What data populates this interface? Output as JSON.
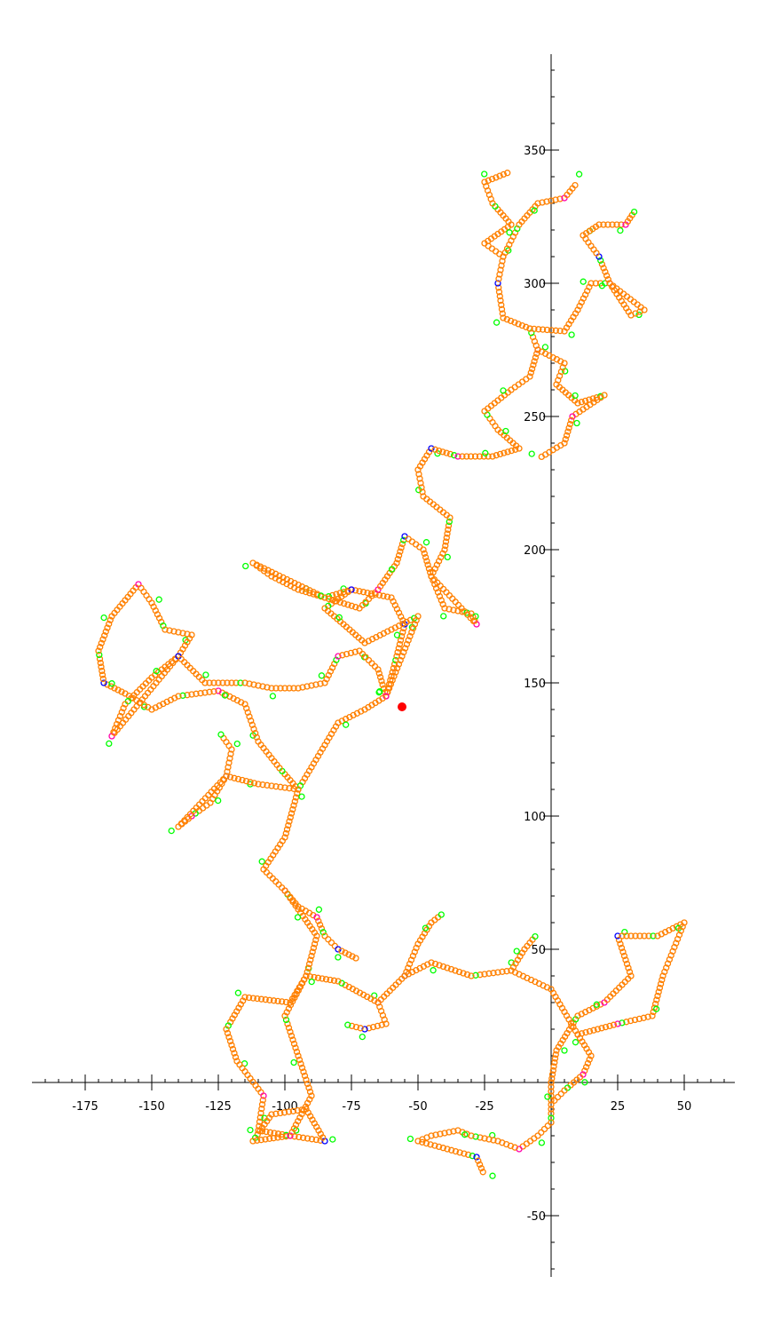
{
  "chart_data": {
    "type": "scatter",
    "title": "",
    "xlabel": "",
    "ylabel": "",
    "grid": false,
    "xlim": [
      -195,
      69
    ],
    "ylim": [
      -73,
      386
    ],
    "x_ticks": [
      -175,
      -150,
      -125,
      -100,
      -75,
      -50,
      -25,
      25,
      50
    ],
    "x_tick_labels": [
      "-175",
      "-150",
      "-125",
      "-100",
      "-75",
      "-50",
      "-25",
      "25",
      "50"
    ],
    "y_ticks": [
      -50,
      50,
      100,
      150,
      200,
      250,
      300,
      350
    ],
    "y_tick_labels": [
      "-50",
      "50",
      "100",
      "150",
      "200",
      "250",
      "300",
      "350"
    ],
    "marker": "open-circle",
    "highlight": {
      "x": -56,
      "y": 141,
      "color": "#ff0000",
      "marker": "filled-circle"
    },
    "series_colors": {
      "chain": "#ff8000",
      "end": "#00ff00",
      "branch": "#ff00aa",
      "junction": "#0000ff"
    },
    "path": [
      [
        0,
        0
      ],
      [
        2,
        12
      ],
      [
        10,
        25
      ],
      [
        20,
        30
      ],
      [
        30,
        40
      ],
      [
        25,
        55
      ],
      [
        40,
        55
      ],
      [
        50,
        60
      ],
      [
        42,
        40
      ],
      [
        38,
        25
      ],
      [
        25,
        22
      ],
      [
        10,
        18
      ],
      [
        0,
        35
      ],
      [
        -15,
        42
      ],
      [
        -30,
        40
      ],
      [
        -45,
        45
      ],
      [
        -55,
        40
      ],
      [
        -65,
        30
      ],
      [
        -80,
        38
      ],
      [
        -92,
        40
      ],
      [
        -98,
        30
      ],
      [
        -115,
        32
      ],
      [
        -122,
        20
      ],
      [
        -118,
        8
      ],
      [
        -108,
        -5
      ],
      [
        -110,
        -18
      ],
      [
        -98,
        -20
      ],
      [
        -85,
        -22
      ],
      [
        -92,
        -10
      ],
      [
        -105,
        -12
      ],
      [
        -112,
        -22
      ],
      [
        -98,
        -20
      ],
      [
        -90,
        -5
      ],
      [
        -95,
        10
      ],
      [
        -100,
        25
      ],
      [
        -92,
        40
      ],
      [
        -88,
        55
      ],
      [
        -95,
        65
      ],
      [
        -100,
        72
      ],
      [
        -108,
        80
      ],
      [
        -100,
        92
      ],
      [
        -95,
        110
      ],
      [
        -102,
        118
      ],
      [
        -110,
        128
      ],
      [
        -115,
        142
      ],
      [
        -125,
        147
      ],
      [
        -140,
        145
      ],
      [
        -150,
        140
      ],
      [
        -160,
        146
      ],
      [
        -168,
        150
      ],
      [
        -170,
        162
      ],
      [
        -165,
        175
      ],
      [
        -155,
        187
      ],
      [
        -150,
        180
      ],
      [
        -145,
        170
      ],
      [
        -135,
        168
      ],
      [
        -140,
        160
      ],
      [
        -150,
        152
      ],
      [
        -160,
        142
      ],
      [
        -165,
        130
      ],
      [
        -140,
        160
      ],
      [
        -130,
        150
      ],
      [
        -115,
        150
      ],
      [
        -105,
        148
      ],
      [
        -95,
        148
      ],
      [
        -85,
        150
      ],
      [
        -80,
        160
      ],
      [
        -72,
        162
      ],
      [
        -65,
        155
      ],
      [
        -62,
        145
      ],
      [
        -58,
        160
      ],
      [
        -55,
        172
      ],
      [
        -60,
        182
      ],
      [
        -75,
        185
      ],
      [
        -85,
        182
      ],
      [
        -95,
        185
      ],
      [
        -105,
        190
      ],
      [
        -112,
        195
      ],
      [
        -85,
        182
      ],
      [
        -72,
        178
      ],
      [
        -65,
        185
      ],
      [
        -58,
        195
      ],
      [
        -55,
        205
      ],
      [
        -48,
        200
      ],
      [
        -45,
        190
      ],
      [
        -40,
        178
      ],
      [
        -30,
        176
      ],
      [
        -28,
        172
      ],
      [
        -45,
        190
      ],
      [
        -40,
        200
      ],
      [
        -38,
        212
      ],
      [
        -48,
        220
      ],
      [
        -50,
        230
      ],
      [
        -45,
        238
      ],
      [
        -35,
        235
      ],
      [
        -22,
        235
      ],
      [
        -12,
        238
      ],
      [
        -20,
        245
      ],
      [
        -25,
        252
      ],
      [
        -15,
        260
      ],
      [
        -8,
        265
      ],
      [
        -5,
        275
      ],
      [
        -8,
        283
      ],
      [
        -18,
        287
      ],
      [
        -20,
        300
      ],
      [
        -18,
        310
      ],
      [
        -12,
        322
      ],
      [
        -5,
        330
      ],
      [
        5,
        332
      ],
      [
        10,
        338
      ],
      [
        -5,
        275
      ],
      [
        5,
        270
      ],
      [
        2,
        262
      ],
      [
        10,
        255
      ],
      [
        20,
        258
      ],
      [
        8,
        250
      ],
      [
        5,
        240
      ],
      [
        -5,
        234
      ],
      [
        -8,
        283
      ],
      [
        5,
        282
      ],
      [
        10,
        290
      ],
      [
        15,
        300
      ],
      [
        22,
        300
      ],
      [
        30,
        288
      ],
      [
        35,
        290
      ],
      [
        22,
        300
      ],
      [
        18,
        310
      ],
      [
        12,
        318
      ],
      [
        18,
        322
      ],
      [
        28,
        322
      ],
      [
        32,
        328
      ],
      [
        -18,
        310
      ],
      [
        -25,
        315
      ],
      [
        -15,
        322
      ],
      [
        -22,
        330
      ],
      [
        -25,
        338
      ],
      [
        -15,
        342
      ],
      [
        -75,
        185
      ],
      [
        -85,
        178
      ],
      [
        -78,
        172
      ],
      [
        -70,
        165
      ],
      [
        -60,
        170
      ],
      [
        -50,
        175
      ],
      [
        -62,
        145
      ],
      [
        -70,
        140
      ],
      [
        -80,
        135
      ],
      [
        -95,
        110
      ],
      [
        -110,
        112
      ],
      [
        -122,
        115
      ],
      [
        -128,
        105
      ],
      [
        -135,
        100
      ],
      [
        -140,
        96
      ],
      [
        -122,
        115
      ],
      [
        -120,
        125
      ],
      [
        -125,
        132
      ],
      [
        -100,
        72
      ],
      [
        -95,
        66
      ],
      [
        -88,
        62
      ],
      [
        -85,
        55
      ],
      [
        -80,
        50
      ],
      [
        -72,
        46
      ],
      [
        0,
        0
      ],
      [
        0,
        -15
      ],
      [
        -5,
        -20
      ],
      [
        -12,
        -25
      ],
      [
        -20,
        -22
      ],
      [
        -30,
        -20
      ],
      [
        -35,
        -18
      ],
      [
        -45,
        -20
      ],
      [
        -50,
        -22
      ],
      [
        -28,
        -28
      ],
      [
        -25,
        -35
      ],
      [
        -15,
        42
      ],
      [
        -10,
        50
      ],
      [
        -5,
        56
      ],
      [
        -55,
        40
      ],
      [
        -50,
        52
      ],
      [
        -45,
        60
      ],
      [
        -40,
        64
      ],
      [
        -65,
        30
      ],
      [
        -62,
        22
      ],
      [
        -70,
        20
      ],
      [
        -78,
        22
      ],
      [
        10,
        18
      ],
      [
        15,
        10
      ],
      [
        12,
        3
      ],
      [
        5,
        -3
      ],
      [
        0,
        -8
      ]
    ]
  }
}
